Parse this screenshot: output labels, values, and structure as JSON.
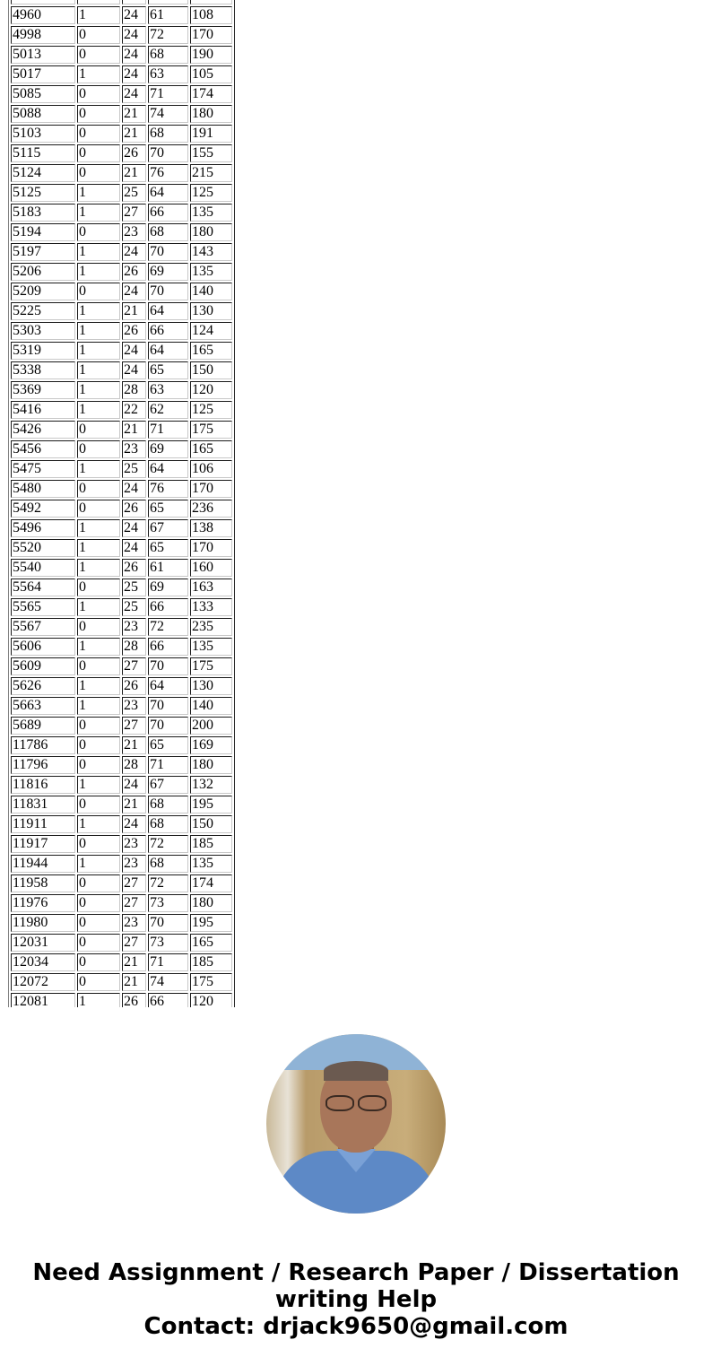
{
  "table": {
    "rows": [
      [
        "4960",
        "1",
        "24",
        "61",
        "108"
      ],
      [
        "4998",
        "0",
        "24",
        "72",
        "170"
      ],
      [
        "5013",
        "0",
        "24",
        "68",
        "190"
      ],
      [
        "5017",
        "1",
        "24",
        "63",
        "105"
      ],
      [
        "5085",
        "0",
        "24",
        "71",
        "174"
      ],
      [
        "5088",
        "0",
        "21",
        "74",
        "180"
      ],
      [
        "5103",
        "0",
        "21",
        "68",
        "191"
      ],
      [
        "5115",
        "0",
        "26",
        "70",
        "155"
      ],
      [
        "5124",
        "0",
        "21",
        "76",
        "215"
      ],
      [
        "5125",
        "1",
        "25",
        "64",
        "125"
      ],
      [
        "5183",
        "1",
        "27",
        "66",
        "135"
      ],
      [
        "5194",
        "0",
        "23",
        "68",
        "180"
      ],
      [
        "5197",
        "1",
        "24",
        "70",
        "143"
      ],
      [
        "5206",
        "1",
        "26",
        "69",
        "135"
      ],
      [
        "5209",
        "0",
        "24",
        "70",
        "140"
      ],
      [
        "5225",
        "1",
        "21",
        "64",
        "130"
      ],
      [
        "5303",
        "1",
        "26",
        "66",
        "124"
      ],
      [
        "5319",
        "1",
        "24",
        "64",
        "165"
      ],
      [
        "5338",
        "1",
        "24",
        "65",
        "150"
      ],
      [
        "5369",
        "1",
        "28",
        "63",
        "120"
      ],
      [
        "5416",
        "1",
        "22",
        "62",
        "125"
      ],
      [
        "5426",
        "0",
        "21",
        "71",
        "175"
      ],
      [
        "5456",
        "0",
        "23",
        "69",
        "165"
      ],
      [
        "5475",
        "1",
        "25",
        "64",
        "106"
      ],
      [
        "5480",
        "0",
        "24",
        "76",
        "170"
      ],
      [
        "5492",
        "0",
        "26",
        "65",
        "236"
      ],
      [
        "5496",
        "1",
        "24",
        "67",
        "138"
      ],
      [
        "5520",
        "1",
        "24",
        "65",
        "170"
      ],
      [
        "5540",
        "1",
        "26",
        "61",
        "160"
      ],
      [
        "5564",
        "0",
        "25",
        "69",
        "163"
      ],
      [
        "5565",
        "1",
        "25",
        "66",
        "133"
      ],
      [
        "5567",
        "0",
        "23",
        "72",
        "235"
      ],
      [
        "5606",
        "1",
        "28",
        "66",
        "135"
      ],
      [
        "5609",
        "0",
        "27",
        "70",
        "175"
      ],
      [
        "5626",
        "1",
        "26",
        "64",
        "130"
      ],
      [
        "5663",
        "1",
        "23",
        "70",
        "140"
      ],
      [
        "5689",
        "0",
        "27",
        "70",
        "200"
      ],
      [
        "11786",
        "0",
        "21",
        "65",
        "169"
      ],
      [
        "11796",
        "0",
        "28",
        "71",
        "180"
      ],
      [
        "11816",
        "1",
        "24",
        "67",
        "132"
      ],
      [
        "11831",
        "0",
        "21",
        "68",
        "195"
      ],
      [
        "11911",
        "1",
        "24",
        "68",
        "150"
      ],
      [
        "11917",
        "0",
        "23",
        "72",
        "185"
      ],
      [
        "11944",
        "1",
        "23",
        "68",
        "135"
      ],
      [
        "11958",
        "0",
        "27",
        "72",
        "174"
      ],
      [
        "11976",
        "0",
        "27",
        "73",
        "180"
      ],
      [
        "11980",
        "0",
        "23",
        "70",
        "195"
      ],
      [
        "12031",
        "0",
        "27",
        "73",
        "165"
      ],
      [
        "12034",
        "0",
        "21",
        "71",
        "185"
      ],
      [
        "12072",
        "0",
        "21",
        "74",
        "175"
      ],
      [
        "12081",
        "1",
        "26",
        "66",
        "120"
      ]
    ]
  },
  "footer": {
    "line1": "Need Assignment / Research Paper / Dissertation",
    "line2": "writing Help",
    "line3": "Contact: drjack9650@gmail.com"
  }
}
